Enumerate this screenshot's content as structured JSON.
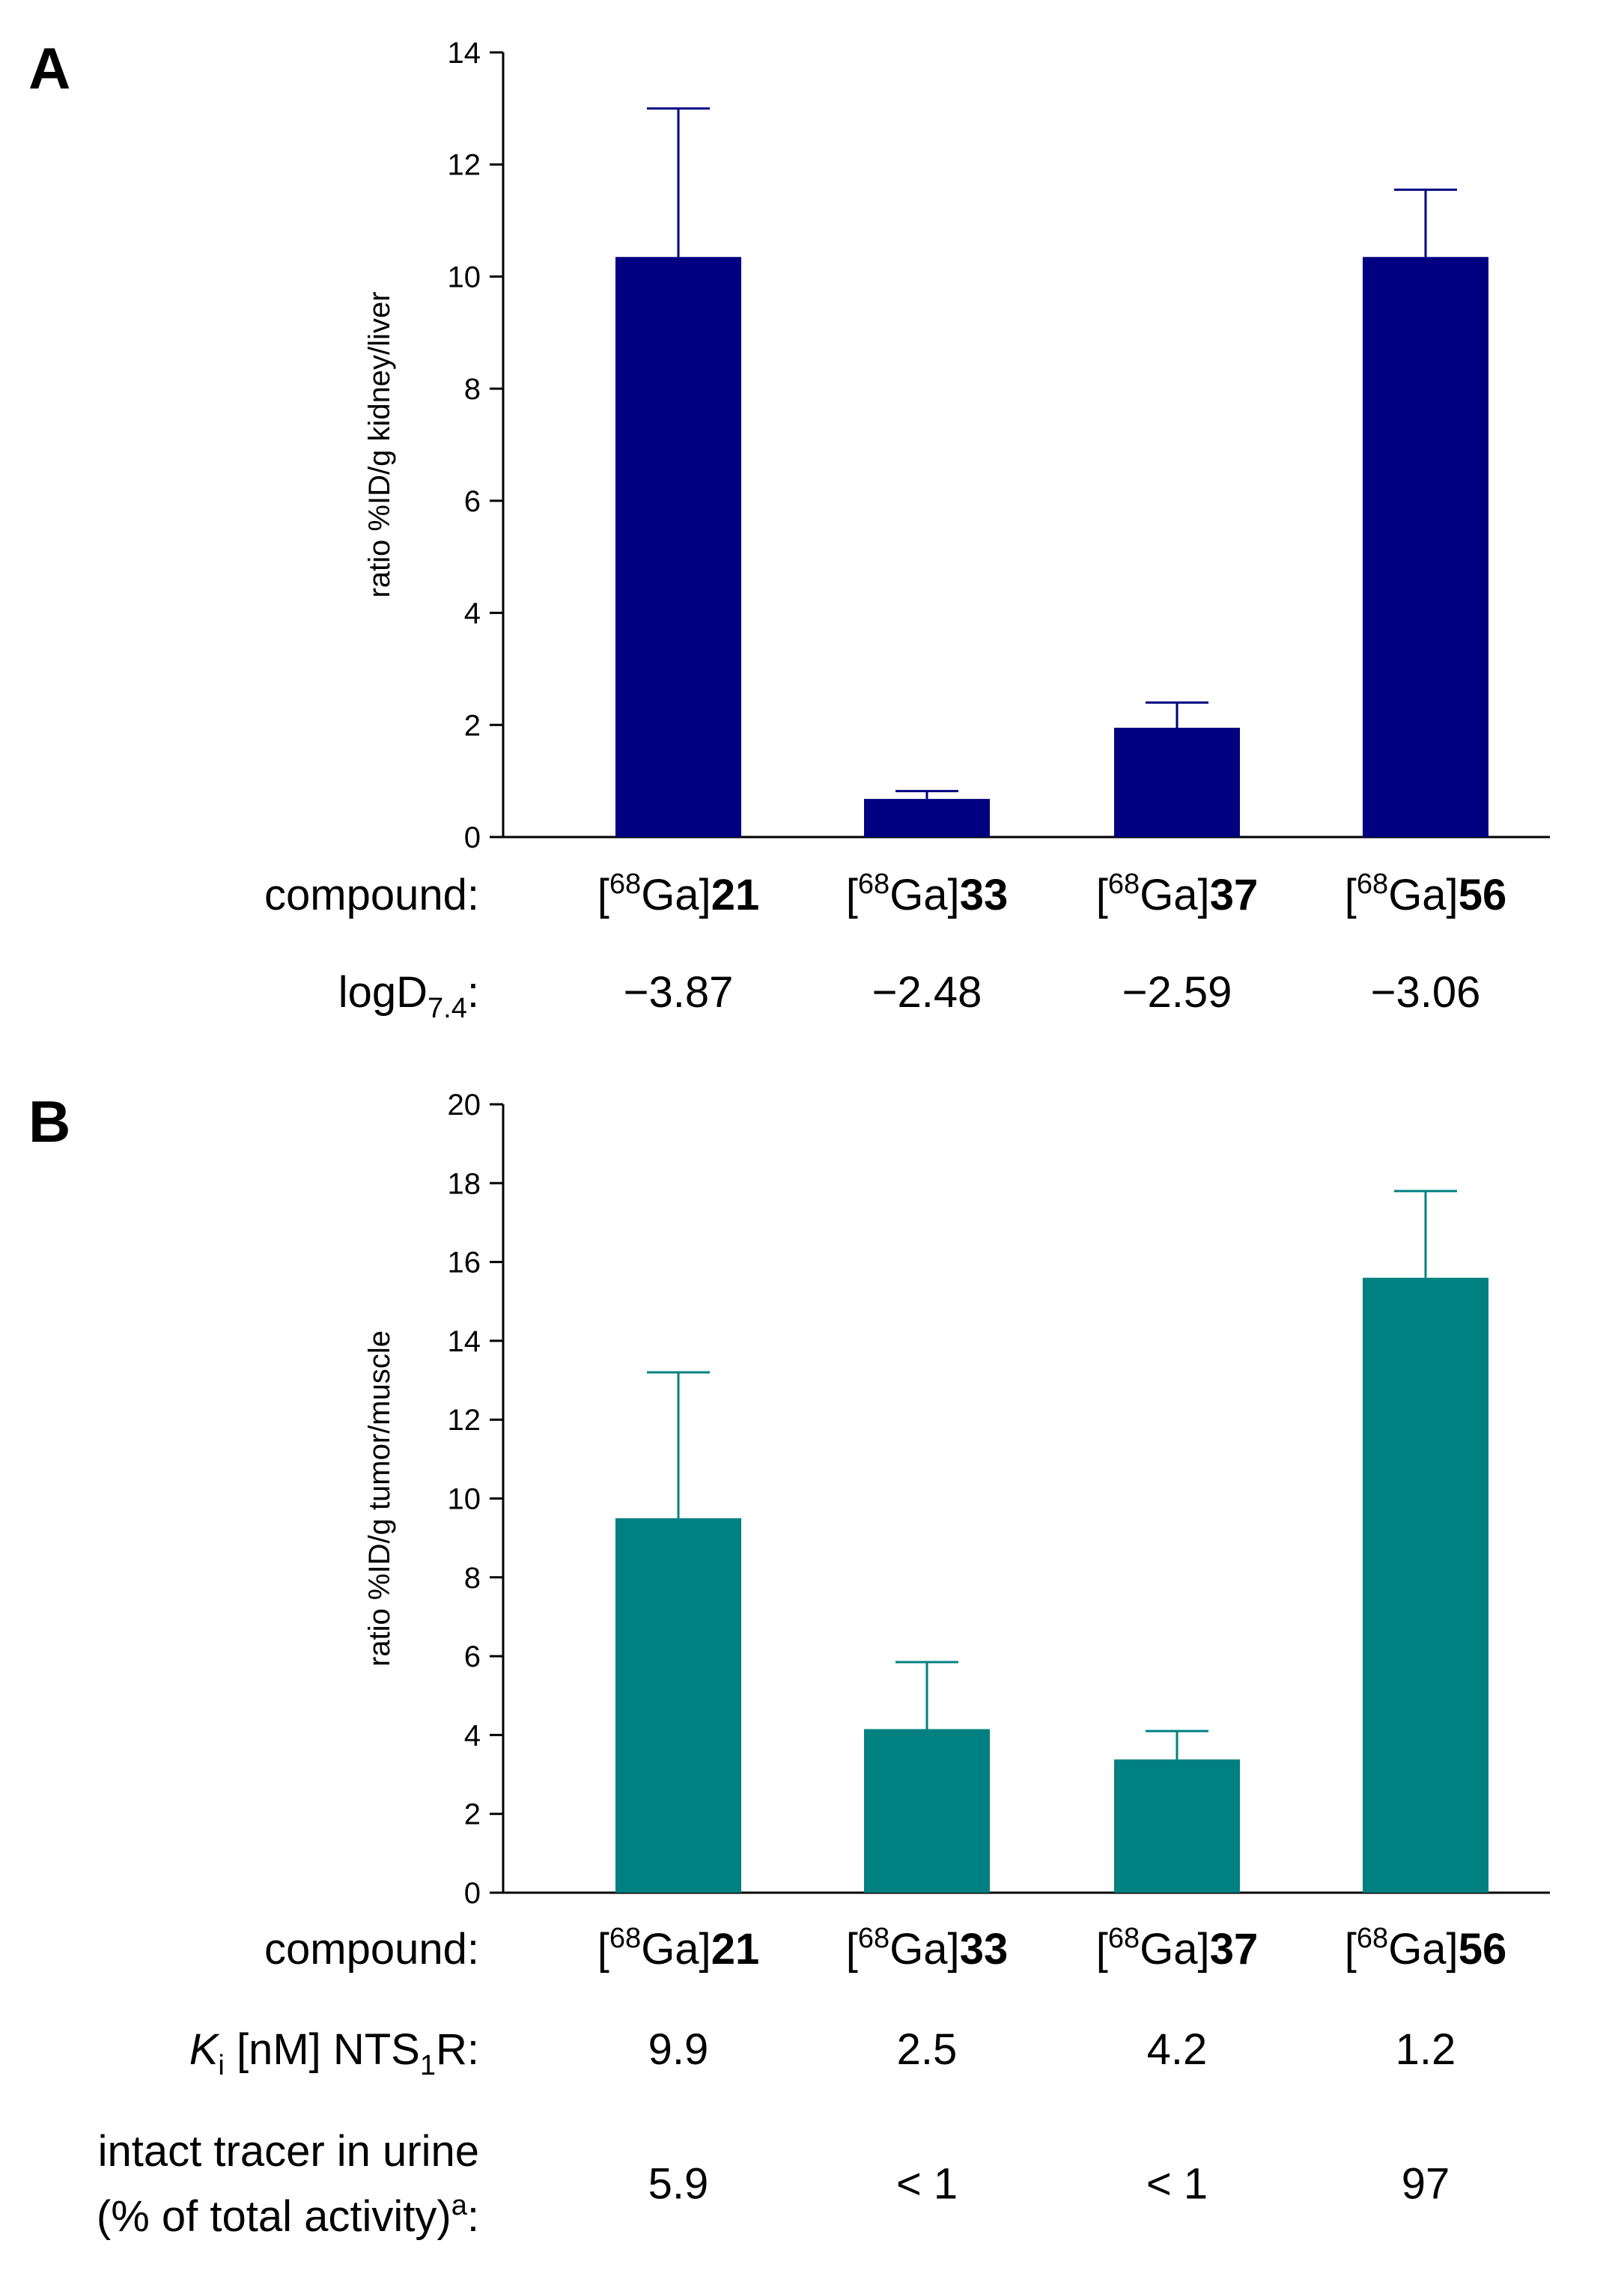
{
  "chart_data": [
    {
      "type": "bar",
      "panel": "A",
      "ylabel": "ratio %ID/g kidney/liver",
      "ylim": [
        0,
        14
      ],
      "yticks": [
        0,
        2,
        4,
        6,
        8,
        10,
        12,
        14
      ],
      "color": "#000080",
      "categories": [
        {
          "prefix": "[",
          "sup": "68",
          "mid": "Ga]",
          "num": "21"
        },
        {
          "prefix": "[",
          "sup": "68",
          "mid": "Ga]",
          "num": "33"
        },
        {
          "prefix": "[",
          "sup": "68",
          "mid": "Ga]",
          "num": "37"
        },
        {
          "prefix": "[",
          "sup": "68",
          "mid": "Ga]",
          "num": "56"
        }
      ],
      "values": [
        10.35,
        0.68,
        1.95,
        10.35
      ],
      "errors": [
        2.65,
        0.14,
        0.45,
        1.2
      ],
      "rows": [
        {
          "label": "compound:",
          "type": "compound"
        },
        {
          "label": "logD",
          "sub": "7.4",
          "suffix": ":",
          "values": [
            "−3.87",
            "−2.48",
            "−2.59",
            "−3.06"
          ]
        }
      ]
    },
    {
      "type": "bar",
      "panel": "B",
      "ylabel": "ratio %ID/g tumor/muscle",
      "ylim": [
        0,
        20
      ],
      "yticks": [
        0,
        2,
        4,
        6,
        8,
        10,
        12,
        14,
        16,
        18,
        20
      ],
      "color": "#008080",
      "categories": [
        {
          "prefix": "[",
          "sup": "68",
          "mid": "Ga]",
          "num": "21"
        },
        {
          "prefix": "[",
          "sup": "68",
          "mid": "Ga]",
          "num": "33"
        },
        {
          "prefix": "[",
          "sup": "68",
          "mid": "Ga]",
          "num": "37"
        },
        {
          "prefix": "[",
          "sup": "68",
          "mid": "Ga]",
          "num": "56"
        }
      ],
      "values": [
        9.5,
        4.15,
        3.38,
        15.6
      ],
      "errors": [
        3.7,
        1.7,
        0.72,
        2.2
      ],
      "rows": [
        {
          "label": "compound:",
          "type": "compound"
        },
        {
          "label_italic": "K",
          "label_sub": "i",
          "label_rest": " [nM] NTS",
          "label_sub2": "1",
          "label_end": "R:",
          "values": [
            "9.9",
            "2.5",
            "4.2",
            "1.2"
          ]
        },
        {
          "label_line1": "intact tracer in urine",
          "label_line2": "(% of total activity)",
          "label_sup": "a",
          "label_end": ":",
          "values": [
            "5.9",
            "< 1",
            "< 1",
            "97"
          ]
        }
      ]
    }
  ]
}
